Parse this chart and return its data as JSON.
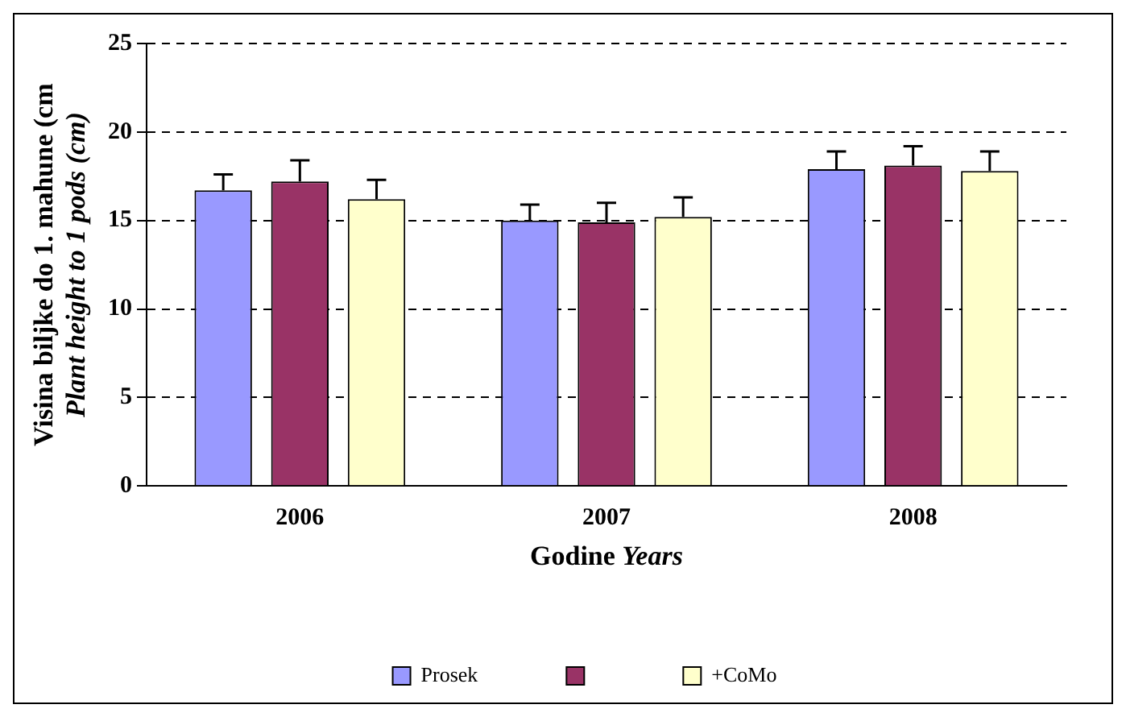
{
  "chart_data": {
    "type": "bar",
    "xlabel": "Godine Years",
    "ylabel": "Visina biljke do 1. mahune (cm\nPlant height to 1 pods (cm)",
    "categories": [
      "2006",
      "2007",
      "2008"
    ],
    "series": [
      {
        "name": "Prosek",
        "color": "#9999ff",
        "values": [
          16.7,
          15.0,
          17.9
        ],
        "errors": [
          [
            16.7,
            17.6
          ],
          [
            15.0,
            15.9
          ],
          [
            17.9,
            18.9
          ]
        ]
      },
      {
        "color": "#993366",
        "values": [
          17.2,
          14.9,
          18.1
        ],
        "errors": [
          [
            17.2,
            18.4
          ],
          [
            14.9,
            16.0
          ],
          [
            18.1,
            19.2
          ]
        ]
      },
      {
        "name": "+CoMo",
        "color": "#ffffcc",
        "values": [
          16.2,
          15.2,
          17.8
        ],
        "errors": [
          [
            16.2,
            17.3
          ],
          [
            15.2,
            16.3
          ],
          [
            17.8,
            18.9
          ]
        ]
      }
    ],
    "ylim": [
      0,
      25
    ],
    "yticks": [
      0,
      5,
      10,
      15,
      20,
      25
    ],
    "grid": "y",
    "legend": "bottom"
  }
}
